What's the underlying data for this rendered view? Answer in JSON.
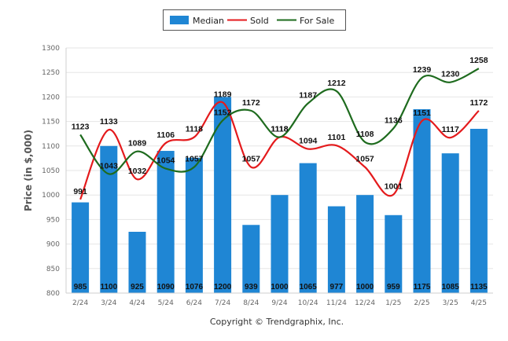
{
  "chart_data": {
    "type": "bar",
    "title": "",
    "ylabel": "Price (in $,000)",
    "xlabel": "",
    "ylim": [
      800,
      1300
    ],
    "yticks": [
      800,
      850,
      900,
      950,
      1000,
      1050,
      1100,
      1150,
      1200,
      1250,
      1300
    ],
    "grid": "horizontal",
    "legend_position": "top-center",
    "categories": [
      "2/24",
      "3/24",
      "4/24",
      "5/24",
      "6/24",
      "7/24",
      "8/24",
      "9/24",
      "10/24",
      "11/24",
      "12/24",
      "1/25",
      "2/25",
      "3/25",
      "4/25"
    ],
    "series": [
      {
        "name": "Median",
        "kind": "bar",
        "color": "#1f86d4",
        "values": [
          985,
          1100,
          925,
          1090,
          1076,
          1200,
          939,
          1000,
          1065,
          977,
          1000,
          959,
          1175,
          1085,
          1135
        ]
      },
      {
        "name": "Sold",
        "kind": "line",
        "color": "#e41a1c",
        "values": [
          991,
          1133,
          1032,
          1106,
          1118,
          1189,
          1057,
          1118,
          1094,
          1101,
          1057,
          1001,
          1151,
          1117,
          1172
        ]
      },
      {
        "name": "For Sale",
        "kind": "line",
        "color": "#1e6b1e",
        "values": [
          1123,
          1043,
          1089,
          1054,
          1057,
          1152,
          1172,
          1118,
          1187,
          1212,
          1108,
          1136,
          1239,
          1230,
          1258
        ]
      }
    ],
    "footer": "Copyright © Trendgraphix, Inc."
  }
}
